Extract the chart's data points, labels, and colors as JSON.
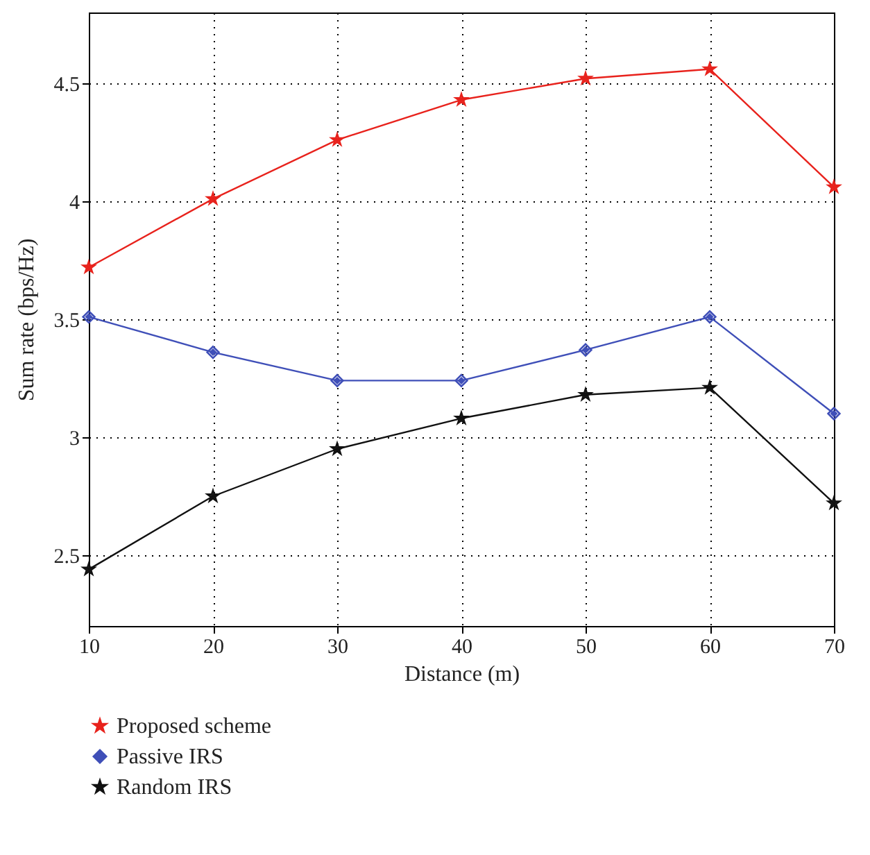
{
  "chart_data": {
    "type": "line",
    "xlabel": "Distance (m)",
    "ylabel": "Sum rate (bps/Hz)",
    "x": [
      10,
      20,
      30,
      40,
      50,
      60,
      70
    ],
    "xlim": [
      10,
      70
    ],
    "xticks": [
      10,
      20,
      30,
      40,
      50,
      60,
      70
    ],
    "ylim": [
      2.2,
      4.8
    ],
    "yticks": [
      2.5,
      {
        "value": 3,
        "label": "3"
      },
      3.5,
      {
        "value": 4,
        "label": "4"
      },
      4.5
    ],
    "grid": true,
    "legend": "bottom",
    "line_style": "solid",
    "series": [
      {
        "name": "Proposed scheme",
        "color": "#e8221c",
        "marker": "star",
        "values": [
          3.72,
          4.01,
          4.26,
          4.43,
          4.52,
          4.56,
          4.06
        ]
      },
      {
        "name": "Passive IRS",
        "color": "#3f4fb8",
        "marker": "diamond",
        "values": [
          3.51,
          3.36,
          3.24,
          3.24,
          3.37,
          3.51,
          3.1
        ]
      },
      {
        "name": "Random IRS",
        "color": "#111111",
        "marker": "star",
        "values": [
          2.44,
          2.75,
          2.95,
          3.08,
          3.18,
          3.21,
          2.72
        ]
      }
    ]
  }
}
